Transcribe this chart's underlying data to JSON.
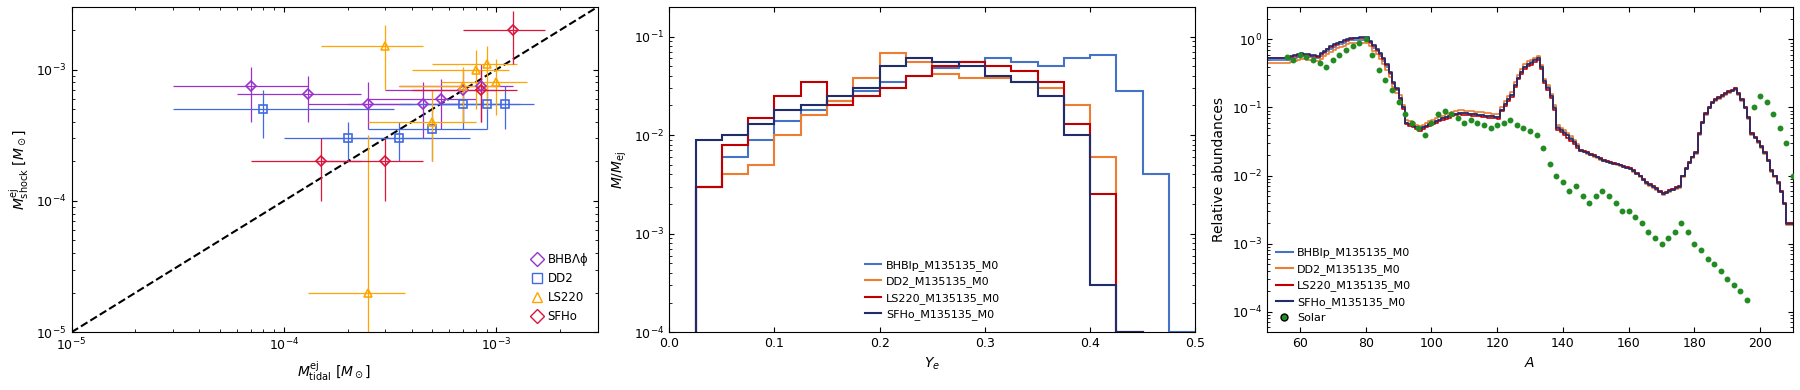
{
  "panel1": {
    "xlabel": "$M^{\\rm ej}_{\\rm tidal}\\ [M_\\odot]$",
    "ylabel": "$M^{\\rm ej}_{\\rm shock}\\ [M_\\odot]$",
    "xlim": [
      1e-05,
      0.003
    ],
    "ylim": [
      1e-05,
      0.003
    ],
    "colors": {
      "BHBAf": "#9932CC",
      "DD2": "#4169E1",
      "LS220": "#FFA500",
      "SFHo": "#DC143C"
    },
    "labels": {
      "BHBAf": "BHBΛϕ",
      "DD2": "DD2",
      "LS220": "LS220",
      "SFHo": "SFHo"
    },
    "scatter": {
      "BHBAf": {
        "x": [
          7e-05,
          0.00013,
          0.00025,
          0.00045,
          0.00055,
          0.0007,
          0.00085
        ],
        "y": [
          0.00075,
          0.00065,
          0.00055,
          0.00055,
          0.0006,
          0.0007,
          0.00075
        ],
        "xerr_lo": [
          4e-05,
          7e-05,
          0.00012,
          0.00025,
          0.0003,
          0.0004,
          0.0005
        ],
        "xerr_hi": [
          6e-05,
          0.0001,
          0.00015,
          0.00025,
          0.00025,
          0.0003,
          0.00035
        ],
        "yerr_lo": [
          0.00035,
          0.00025,
          0.0002,
          0.00025,
          0.00025,
          0.0003,
          0.00035
        ],
        "yerr_hi": [
          0.0003,
          0.00025,
          0.00025,
          0.00025,
          0.00025,
          0.0003,
          0.00035
        ]
      },
      "DD2": {
        "x": [
          8e-05,
          0.0002,
          0.00035,
          0.0005,
          0.0007,
          0.0009,
          0.0011
        ],
        "y": [
          0.0005,
          0.0003,
          0.0003,
          0.00035,
          0.00055,
          0.00055,
          0.00055
        ],
        "xerr_lo": [
          5e-05,
          0.0001,
          0.0002,
          0.00025,
          0.00035,
          0.00045,
          0.00055
        ],
        "xerr_hi": [
          0.00025,
          0.0003,
          0.0004,
          0.0004,
          0.0004,
          0.0004,
          0.0004
        ],
        "yerr_lo": [
          0.0002,
          0.0001,
          0.0001,
          0.00015,
          0.0002,
          0.0002,
          0.0002
        ],
        "yerr_hi": [
          0.0002,
          0.0001,
          0.0001,
          0.00015,
          0.0002,
          0.0002,
          0.0002
        ]
      },
      "LS220": {
        "x": [
          0.00025,
          0.0003,
          0.0005,
          0.0007,
          0.0008,
          0.0009,
          0.001
        ],
        "y": [
          2e-05,
          0.0015,
          0.0004,
          0.00075,
          0.001,
          0.0011,
          0.0008
        ],
        "xerr_lo": [
          0.00012,
          0.00015,
          0.00025,
          0.00035,
          0.0004,
          0.0004,
          0.00045
        ],
        "xerr_hi": [
          0.00012,
          0.00015,
          0.0003,
          0.0003,
          0.00035,
          0.00035,
          0.0004
        ],
        "yerr_lo": [
          1.5e-05,
          0.0008,
          0.0002,
          0.00035,
          0.0005,
          0.0006,
          0.00035
        ],
        "yerr_hi": [
          0.0003,
          0.0007,
          0.0003,
          0.0003,
          0.0004,
          0.0004,
          0.0004
        ]
      },
      "SFHo": {
        "x": [
          0.00015,
          0.0003,
          0.00085,
          0.0012
        ],
        "y": [
          0.0002,
          0.0002,
          0.0007,
          0.002
        ],
        "xerr_lo": [
          8e-05,
          0.00015,
          0.00045,
          0.0005
        ],
        "xerr_hi": [
          8e-05,
          0.00015,
          0.0004,
          0.0005
        ],
        "yerr_lo": [
          0.0001,
          0.0001,
          0.0003,
          0.0009
        ],
        "yerr_hi": [
          0.0001,
          0.0001,
          0.0003,
          0.0008
        ]
      }
    }
  },
  "panel2": {
    "xlabel": "$Y_e$",
    "ylabel": "$M/M_{\\rm ej}$",
    "xlim": [
      0.0,
      0.5
    ],
    "ylim": [
      0.0001,
      0.2
    ],
    "colors": {
      "BHB1p": "#4472C4",
      "DD2": "#ED7D31",
      "LS220": "#C00000",
      "SFHo": "#1F2D6E"
    },
    "labels": {
      "BHB1p": "BHBlp_M135135_M0",
      "DD2": "DD2_M135135_M0",
      "LS220": "LS220_M135135_M0",
      "SFHo": "SFHo_M135135_M0"
    },
    "ye_edges": [
      0.0,
      0.025,
      0.05,
      0.075,
      0.1,
      0.125,
      0.15,
      0.175,
      0.2,
      0.225,
      0.25,
      0.275,
      0.3,
      0.325,
      0.35,
      0.375,
      0.4,
      0.425,
      0.45,
      0.475,
      0.5
    ],
    "histograms": {
      "BHB1p": [
        1e-05,
        0.003,
        0.006,
        0.009,
        0.014,
        0.018,
        0.022,
        0.028,
        0.035,
        0.04,
        0.048,
        0.055,
        0.06,
        0.055,
        0.05,
        0.06,
        0.065,
        0.028,
        0.004,
        0.0001
      ],
      "DD2": [
        1e-05,
        0.003,
        0.004,
        0.005,
        0.01,
        0.016,
        0.022,
        0.038,
        0.068,
        0.055,
        0.042,
        0.038,
        0.038,
        0.035,
        0.03,
        0.02,
        0.006,
        0.0001,
        1e-05,
        1e-05
      ],
      "LS220": [
        1e-05,
        0.003,
        0.008,
        0.015,
        0.025,
        0.035,
        0.02,
        0.025,
        0.03,
        0.04,
        0.05,
        0.055,
        0.05,
        0.045,
        0.035,
        0.013,
        0.0025,
        0.0001,
        1e-05,
        1e-05
      ],
      "SFHo": [
        1e-05,
        0.009,
        0.01,
        0.013,
        0.018,
        0.02,
        0.025,
        0.03,
        0.05,
        0.06,
        0.055,
        0.05,
        0.04,
        0.035,
        0.025,
        0.01,
        0.0003,
        0.0001,
        1e-05,
        1e-05
      ]
    }
  },
  "panel3": {
    "xlabel": "$A$",
    "ylabel": "Relative abundances",
    "xlim": [
      50,
      210
    ],
    "ylim": [
      5e-05,
      3.0
    ],
    "colors": {
      "BHB1p": "#4472C4",
      "DD2": "#ED7D31",
      "LS220": "#C00000",
      "SFHo": "#1F2D6E",
      "Solar": "#228B22"
    },
    "labels": {
      "BHB1p": "BHBlp_M135135_M0",
      "DD2": "DD2_M135135_M0",
      "LS220": "LS220_M135135_M0",
      "SFHo": "SFHo_M135135_M0",
      "Solar": "Solar"
    },
    "solar_A": [
      56,
      58,
      60,
      62,
      64,
      66,
      68,
      70,
      72,
      74,
      76,
      78,
      80,
      82,
      84,
      86,
      88,
      90,
      92,
      94,
      96,
      98,
      100,
      102,
      104,
      106,
      108,
      110,
      112,
      114,
      116,
      118,
      120,
      122,
      124,
      126,
      128,
      130,
      132,
      134,
      136,
      138,
      140,
      142,
      144,
      146,
      148,
      150,
      152,
      154,
      156,
      158,
      160,
      162,
      164,
      166,
      168,
      170,
      172,
      174,
      176,
      178,
      180,
      182,
      184,
      186,
      188,
      190,
      192,
      194,
      196,
      198,
      200,
      202,
      204,
      206,
      208,
      210
    ],
    "solar_y": [
      0.55,
      0.5,
      0.6,
      0.55,
      0.5,
      0.45,
      0.4,
      0.5,
      0.6,
      0.7,
      0.8,
      0.9,
      1.0,
      0.6,
      0.35,
      0.25,
      0.18,
      0.12,
      0.08,
      0.06,
      0.05,
      0.04,
      0.06,
      0.08,
      0.09,
      0.08,
      0.07,
      0.06,
      0.065,
      0.06,
      0.055,
      0.05,
      0.055,
      0.06,
      0.065,
      0.055,
      0.05,
      0.045,
      0.04,
      0.025,
      0.015,
      0.01,
      0.008,
      0.006,
      0.007,
      0.005,
      0.004,
      0.005,
      0.006,
      0.005,
      0.004,
      0.003,
      0.003,
      0.0025,
      0.002,
      0.0015,
      0.0012,
      0.001,
      0.0012,
      0.0015,
      0.002,
      0.0015,
      0.001,
      0.0008,
      0.0006,
      0.0005,
      0.0004,
      0.0003,
      0.00025,
      0.0002,
      0.00015,
      0.1,
      0.15,
      0.12,
      0.08,
      0.05,
      0.03,
      0.01
    ]
  }
}
